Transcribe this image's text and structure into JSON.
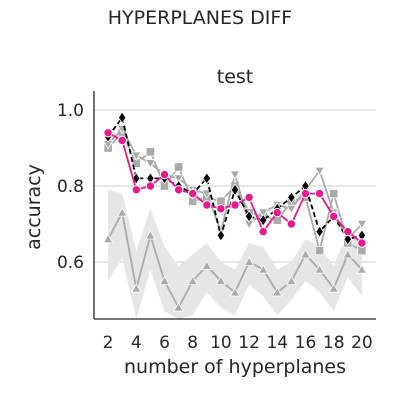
{
  "chart_data": {
    "type": "line",
    "suptitle": "HYPERPLANES DIFF",
    "title": "test",
    "xlabel": "number of hyperplanes",
    "ylabel": "accuracy",
    "xlim": [
      1,
      21
    ],
    "ylim": [
      0.45,
      1.05
    ],
    "xticks": [
      2,
      4,
      6,
      8,
      10,
      12,
      14,
      16,
      18,
      20
    ],
    "yticks": [
      0.6,
      0.8,
      1.0
    ],
    "ytick_labels": [
      "0.6",
      "0.8",
      "1.0"
    ],
    "grid": "horizontal",
    "x": [
      2,
      3,
      4,
      5,
      6,
      7,
      8,
      9,
      10,
      11,
      12,
      13,
      14,
      15,
      16,
      17,
      18,
      19,
      20
    ],
    "series": [
      {
        "color": "#000000",
        "style": "dashed",
        "marker": "diamond",
        "values": [
          0.93,
          0.98,
          0.82,
          0.82,
          0.82,
          0.8,
          0.78,
          0.82,
          0.67,
          0.79,
          0.72,
          0.71,
          0.74,
          0.77,
          0.8,
          0.68,
          0.72,
          0.66,
          0.67
        ]
      },
      {
        "color": "#aaaaaa",
        "style": "solid",
        "marker": "square",
        "values": [
          0.9,
          0.94,
          0.86,
          0.89,
          0.8,
          0.85,
          0.76,
          0.77,
          0.76,
          0.8,
          0.73,
          0.72,
          0.71,
          0.76,
          0.77,
          0.63,
          0.78,
          0.65,
          0.63
        ]
      },
      {
        "color": "#aaaaaa",
        "style": "solid",
        "marker": "triangle-down",
        "values": [
          0.91,
          0.95,
          0.88,
          0.86,
          0.83,
          0.82,
          0.79,
          0.78,
          0.68,
          0.83,
          0.7,
          0.73,
          0.75,
          0.74,
          0.79,
          0.84,
          0.73,
          0.66,
          0.7
        ]
      },
      {
        "color": "#aaaaaa",
        "style": "solid",
        "marker": "triangle-up",
        "values": [
          0.66,
          0.73,
          0.53,
          0.67,
          0.55,
          0.48,
          0.55,
          0.59,
          0.55,
          0.52,
          0.6,
          0.58,
          0.52,
          0.55,
          0.62,
          0.58,
          0.53,
          0.62,
          0.58
        ]
      },
      {
        "color": "#e8198a",
        "style": "solid",
        "marker": "circle",
        "values": [
          0.94,
          0.92,
          0.79,
          0.8,
          0.83,
          0.79,
          0.78,
          0.75,
          0.74,
          0.75,
          0.77,
          0.68,
          0.73,
          0.7,
          0.78,
          0.78,
          0.72,
          0.68,
          0.65
        ]
      }
    ],
    "band": {
      "color": "#e6e6e6",
      "upper": [
        0.79,
        0.78,
        0.63,
        0.74,
        0.64,
        0.59,
        0.62,
        0.65,
        0.6,
        0.58,
        0.65,
        0.64,
        0.58,
        0.6,
        0.66,
        0.64,
        0.59,
        0.68,
        0.65
      ],
      "lower": [
        0.55,
        0.61,
        0.45,
        0.58,
        0.47,
        0.45,
        0.46,
        0.52,
        0.48,
        0.46,
        0.54,
        0.51,
        0.46,
        0.5,
        0.55,
        0.52,
        0.47,
        0.56,
        0.51
      ]
    }
  }
}
